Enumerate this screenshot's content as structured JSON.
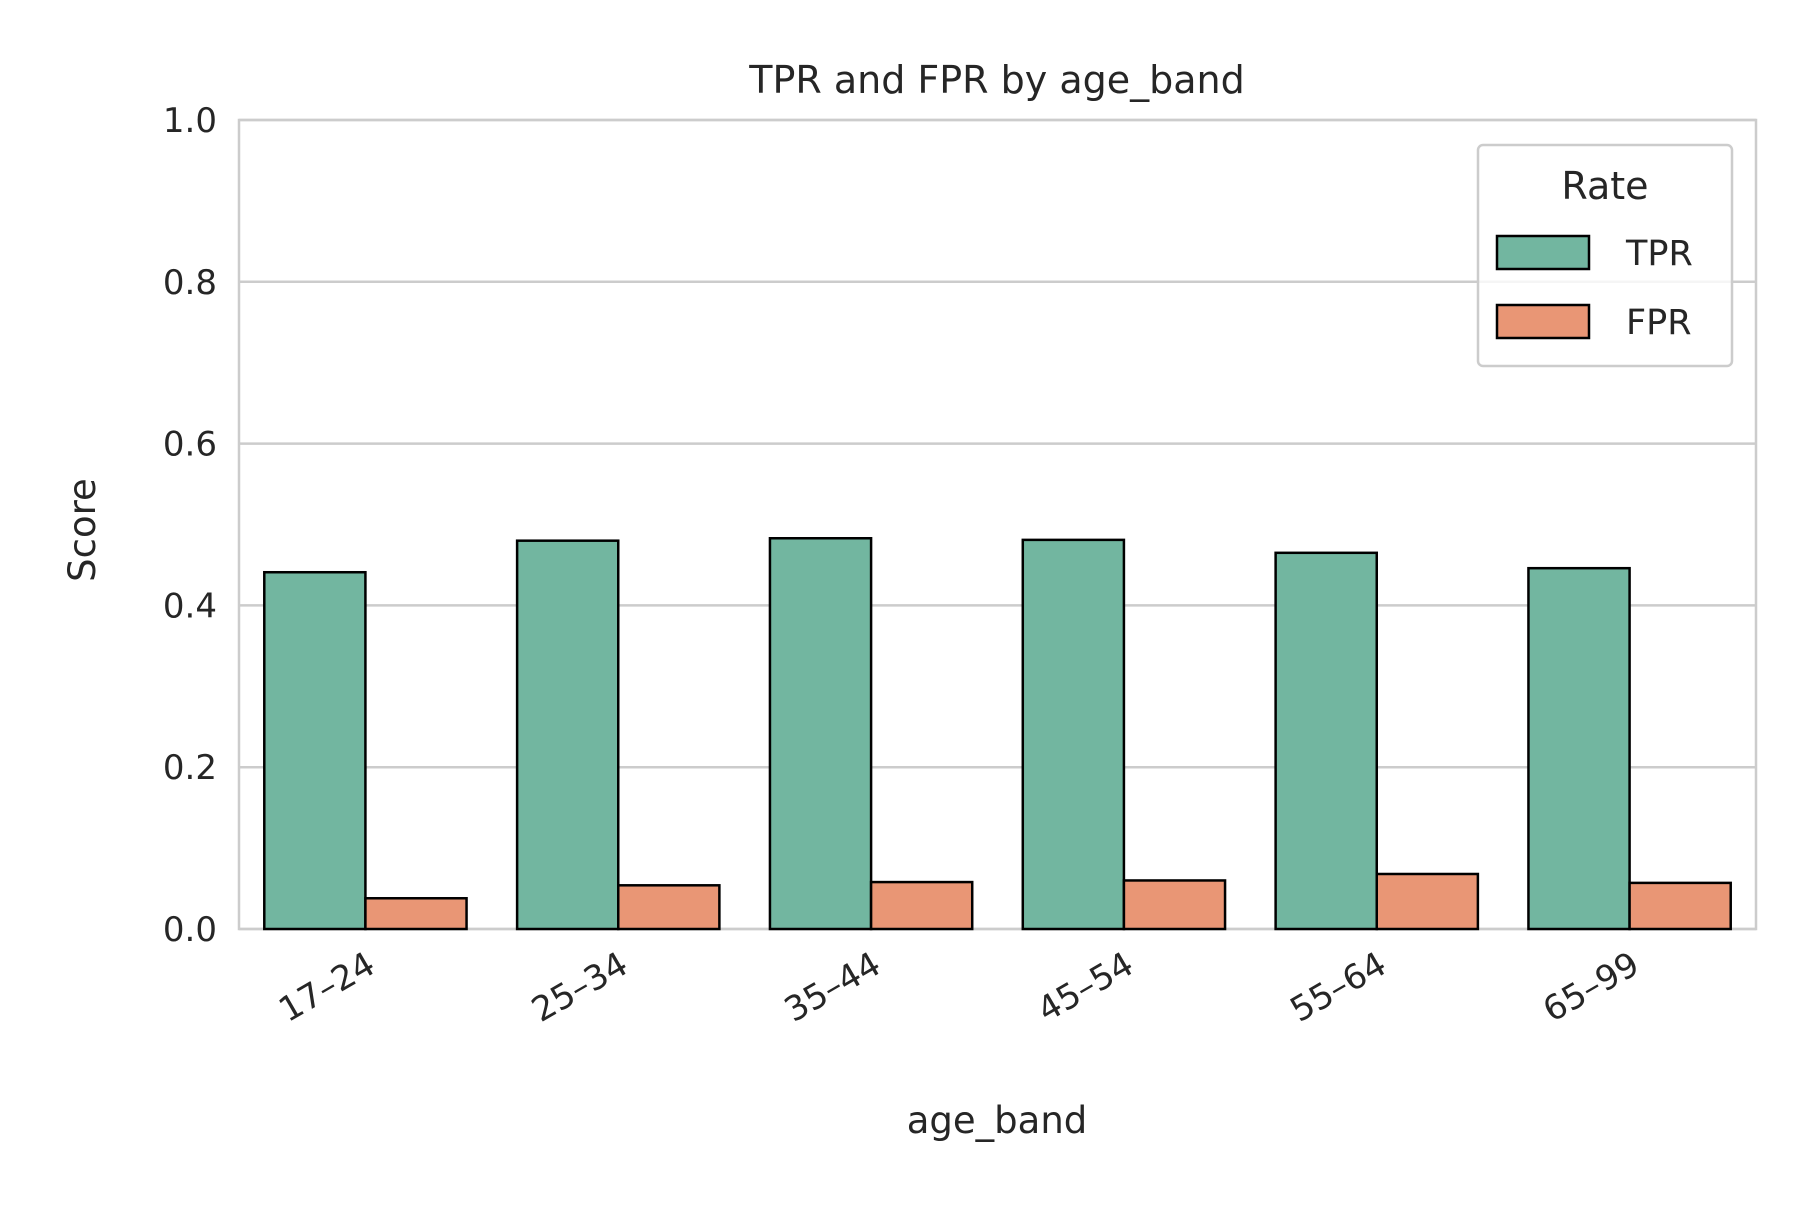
{
  "chart_data": {
    "type": "bar",
    "title": "TPR and FPR by age_band",
    "xlabel": "age_band",
    "ylabel": "Score",
    "categories": [
      "17–24",
      "25–34",
      "35–44",
      "45–54",
      "55–64",
      "65–99"
    ],
    "series": [
      {
        "name": "TPR",
        "color": "#72b6a0",
        "values": [
          0.441,
          0.48,
          0.483,
          0.481,
          0.465,
          0.446
        ]
      },
      {
        "name": "FPR",
        "color": "#e99675",
        "values": [
          0.038,
          0.054,
          0.058,
          0.06,
          0.068,
          0.057
        ]
      }
    ],
    "ylim": [
      0,
      1.0
    ],
    "yticks": [
      "0.0",
      "0.2",
      "0.4",
      "0.6",
      "0.8",
      "1.0"
    ],
    "grid": true,
    "legend": {
      "title": "Rate",
      "position": "top-right"
    }
  }
}
